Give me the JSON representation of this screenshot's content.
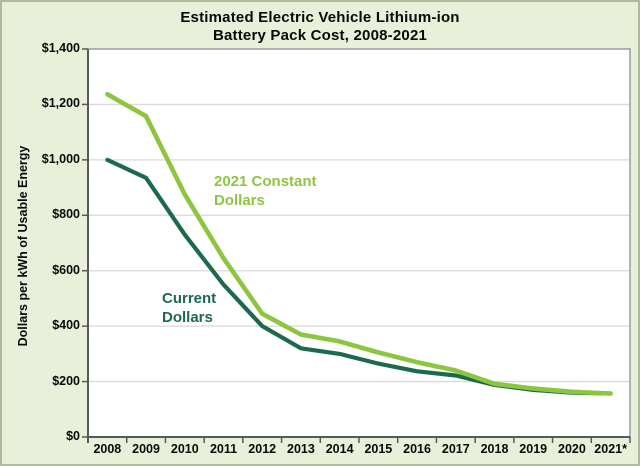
{
  "chart_data": {
    "type": "line",
    "title": "Estimated Electric Vehicle Lithium-ion Battery Pack Cost, 2008-2021",
    "title_lines": [
      "Estimated Electric Vehicle Lithium-ion",
      "Battery Pack Cost, 2008-2021"
    ],
    "ylabel": "Dollars per kWh of Usable Energy",
    "xlabel": "",
    "categories": [
      "2008",
      "2009",
      "2010",
      "2011",
      "2012",
      "2013",
      "2014",
      "2015",
      "2016",
      "2017",
      "2018",
      "2019",
      "2020",
      "2021*"
    ],
    "series": [
      {
        "name": "Current Dollars",
        "label_lines": [
          "Current",
          "Dollars"
        ],
        "color": "#1B6B4B",
        "values": [
          1000,
          935,
          730,
          550,
          400,
          320,
          300,
          265,
          237,
          222,
          188,
          170,
          160,
          157
        ]
      },
      {
        "name": "2021 Constant Dollars",
        "label_lines": [
          "2021 Constant",
          "Dollars"
        ],
        "color": "#8CC63F",
        "values": [
          1237,
          1157,
          875,
          645,
          445,
          370,
          345,
          305,
          270,
          240,
          192,
          175,
          163,
          157
        ]
      }
    ],
    "ylim": [
      0,
      1400
    ],
    "y_ticks": [
      {
        "value": 0,
        "label": "$0"
      },
      {
        "value": 200,
        "label": "$200"
      },
      {
        "value": 400,
        "label": "$400"
      },
      {
        "value": 600,
        "label": "$600"
      },
      {
        "value": 800,
        "label": "$800"
      },
      {
        "value": 1000,
        "label": "$1,000"
      },
      {
        "value": 1200,
        "label": "$1,200"
      },
      {
        "value": 1400,
        "label": "$1,400"
      }
    ],
    "grid": "horizontal",
    "legend": "inline-annotations"
  },
  "colors": {
    "background": "#E8F0DA",
    "plot_background": "#FFFFFF",
    "gridline": "#D9D9D9",
    "plot_border": "#9B9B9B",
    "axis_line": "#595959",
    "text": "#0A0A0A"
  }
}
